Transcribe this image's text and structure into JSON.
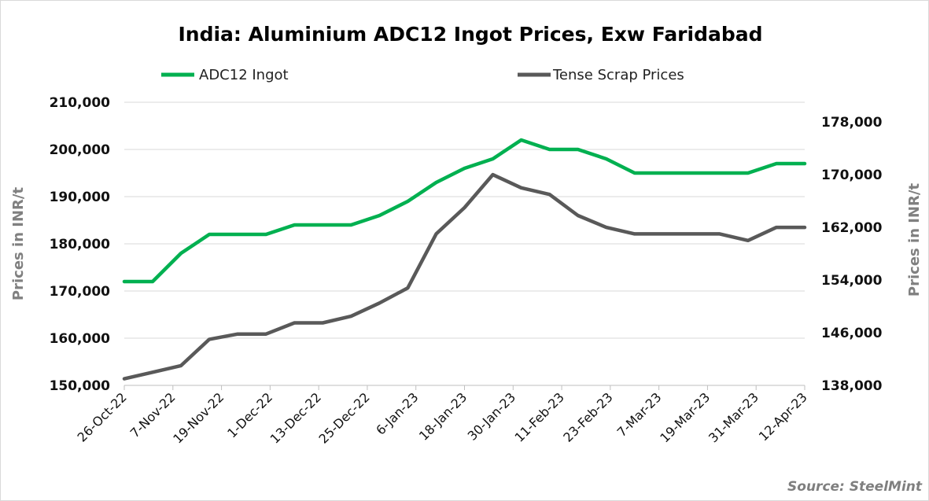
{
  "chart_data": {
    "type": "line",
    "title": "India: Aluminium ADC12 Ingot Prices, Exw Faridabad",
    "ylabel_left": "Prices in INR/t",
    "ylabel_right": "Prices in INR/t",
    "source": "Source: SteelMint",
    "left_axis": {
      "ylim": [
        150000,
        210000
      ],
      "ticks": [
        "150,000",
        "160,000",
        "170,000",
        "180,000",
        "190,000",
        "200,000",
        "210,000"
      ]
    },
    "right_axis": {
      "ylim": [
        138000,
        181000
      ],
      "ticks": [
        "138,000",
        "146,000",
        "154,000",
        "162,000",
        "170,000",
        "178,000"
      ]
    },
    "x_tick_labels": [
      "26-Oct-22",
      "7-Nov-22",
      "19-Nov-22",
      "1-Dec-22",
      "13-Dec-22",
      "25-Dec-22",
      "6-Jan-23",
      "18-Jan-23",
      "30-Jan-23",
      "11-Feb-23",
      "23-Feb-23",
      "7-Mar-23",
      "19-Mar-23",
      "31-Mar-23",
      "12-Apr-23"
    ],
    "x_dates": [
      "2022-10-26",
      "2022-11-02",
      "2022-11-09",
      "2022-11-16",
      "2022-11-23",
      "2022-11-30",
      "2022-12-07",
      "2022-12-14",
      "2022-12-21",
      "2022-12-28",
      "2023-01-04",
      "2023-01-11",
      "2023-01-18",
      "2023-01-25",
      "2023-02-01",
      "2023-02-08",
      "2023-02-15",
      "2023-02-22",
      "2023-03-01",
      "2023-03-08",
      "2023-03-15",
      "2023-03-22",
      "2023-03-29",
      "2023-04-05",
      "2023-04-12"
    ],
    "legend_position": "top",
    "grid": true,
    "series": [
      {
        "name": "ADC12 Ingot",
        "axis": "left",
        "color": "#00b050",
        "values": [
          172000,
          172000,
          178000,
          182000,
          182000,
          182000,
          184000,
          184000,
          184000,
          186000,
          189000,
          193000,
          196000,
          198000,
          202000,
          200000,
          200000,
          198000,
          195000,
          195000,
          195000,
          195000,
          195000,
          197000,
          197000
        ]
      },
      {
        "name": "Tense Scrap Prices",
        "axis": "right",
        "color": "#595959",
        "values": [
          139000,
          140000,
          141000,
          145000,
          145800,
          145800,
          147500,
          147500,
          148500,
          150500,
          152800,
          161000,
          165000,
          170000,
          168000,
          167000,
          163800,
          162000,
          161000,
          161000,
          161000,
          161000,
          160000,
          162000,
          162000
        ]
      }
    ]
  }
}
